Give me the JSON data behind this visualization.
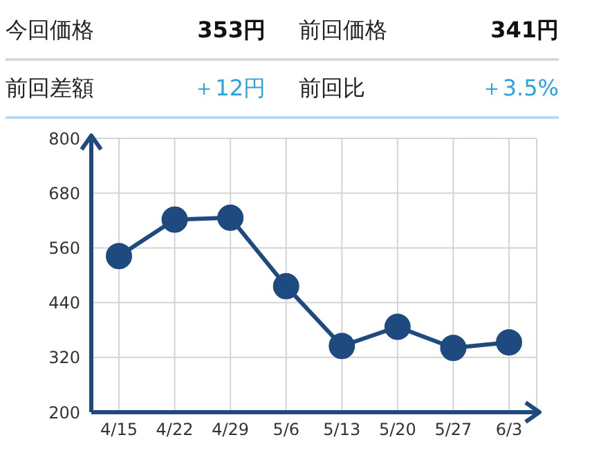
{
  "chart_data": {
    "type": "line",
    "annotations": [
      "今回価格",
      "353円",
      "前回価格",
      "341円",
      "前回差額",
      "＋12円",
      "前回比",
      "＋3.5%"
    ],
    "categories": [
      "4/15",
      "4/22",
      "4/29",
      "5/6",
      "5/13",
      "5/20",
      "5/27",
      "6/3"
    ],
    "series": [
      {
        "color": "#1f4a80",
        "values": [
          542,
          622,
          626,
          476,
          345,
          387,
          341,
          353
        ]
      }
    ],
    "ylim": [
      200,
      800
    ],
    "yticks": [
      200,
      320,
      440,
      560,
      680,
      800
    ],
    "grid": true,
    "marker": "circle",
    "line_style": "solid"
  }
}
